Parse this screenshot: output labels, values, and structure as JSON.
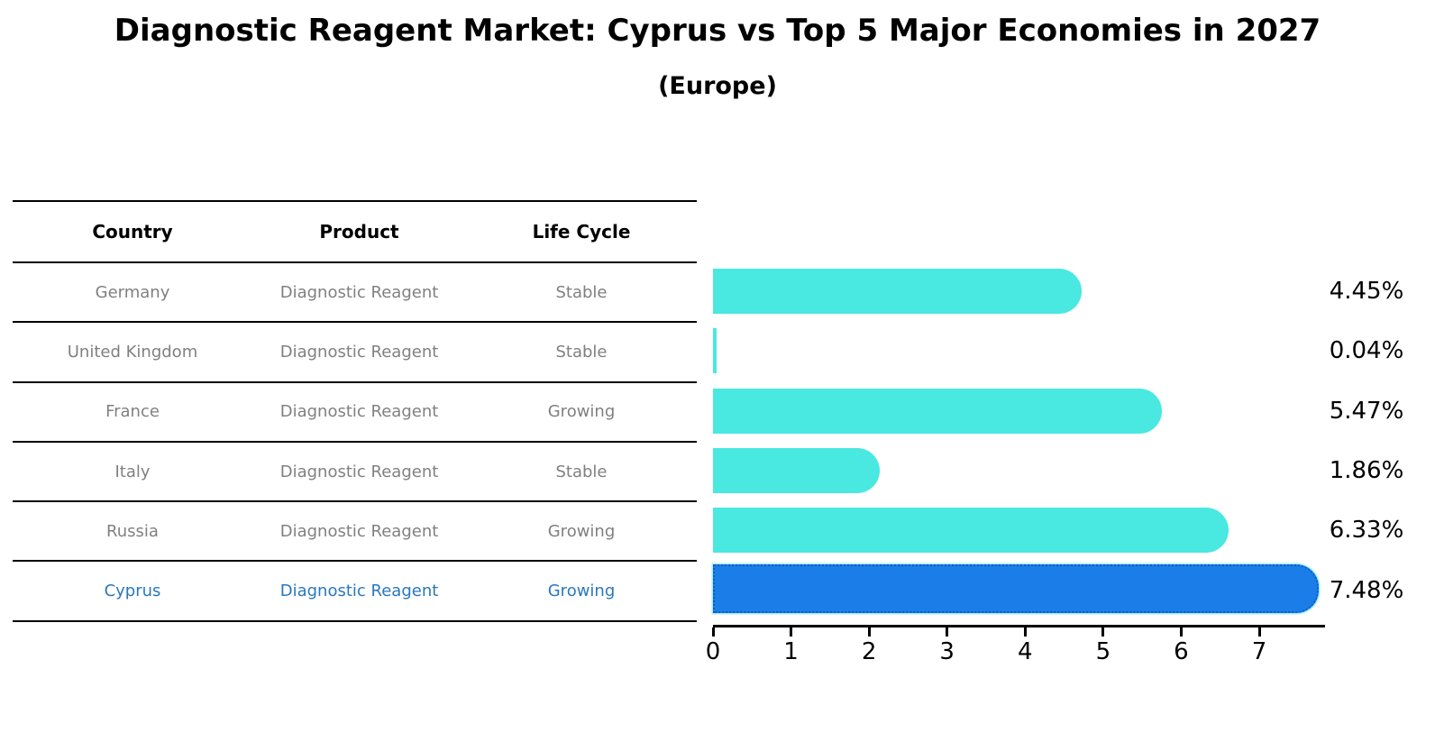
{
  "header": {
    "title": "Diagnostic Reagent Market: Cyprus vs Top 5 Major Economies in 2027",
    "subtitle": "(Europe)"
  },
  "table": {
    "columns": [
      "Country",
      "Product",
      "Life Cycle"
    ],
    "rows": [
      {
        "country": "Germany",
        "product": "Diagnostic Reagent",
        "life_cycle": "Stable",
        "highlight": false
      },
      {
        "country": "United Kingdom",
        "product": "Diagnostic Reagent",
        "life_cycle": "Stable",
        "highlight": false
      },
      {
        "country": "France",
        "product": "Diagnostic Reagent",
        "life_cycle": "Growing",
        "highlight": false
      },
      {
        "country": "Italy",
        "product": "Diagnostic Reagent",
        "life_cycle": "Stable",
        "highlight": false
      },
      {
        "country": "Russia",
        "product": "Diagnostic Reagent",
        "life_cycle": "Growing",
        "highlight": false
      },
      {
        "country": "Cyprus",
        "product": "Diagnostic Reagent",
        "life_cycle": "Growing",
        "highlight": true
      }
    ]
  },
  "chart_data": {
    "type": "bar",
    "orientation": "horizontal",
    "title": "Diagnostic Reagent Market: Cyprus vs Top 5 Major Economies in 2027",
    "subtitle": "(Europe)",
    "categories": [
      "Germany",
      "United Kingdom",
      "France",
      "Italy",
      "Russia",
      "Cyprus"
    ],
    "values": [
      4.45,
      0.04,
      5.47,
      1.86,
      6.33,
      7.48
    ],
    "value_labels": [
      "4.45%",
      "0.04%",
      "5.47%",
      "1.86%",
      "6.33%",
      "7.48%"
    ],
    "xlabel": "",
    "ylabel": "",
    "xlim": [
      0,
      7.82
    ],
    "xticks": [
      0,
      1,
      2,
      3,
      4,
      5,
      6,
      7
    ],
    "grid": false,
    "legend": false,
    "bar_color": "#49E8E1",
    "highlight_color": "#1B7EE8",
    "highlight_text_color": "#2878BE",
    "highlight_index": 5
  }
}
